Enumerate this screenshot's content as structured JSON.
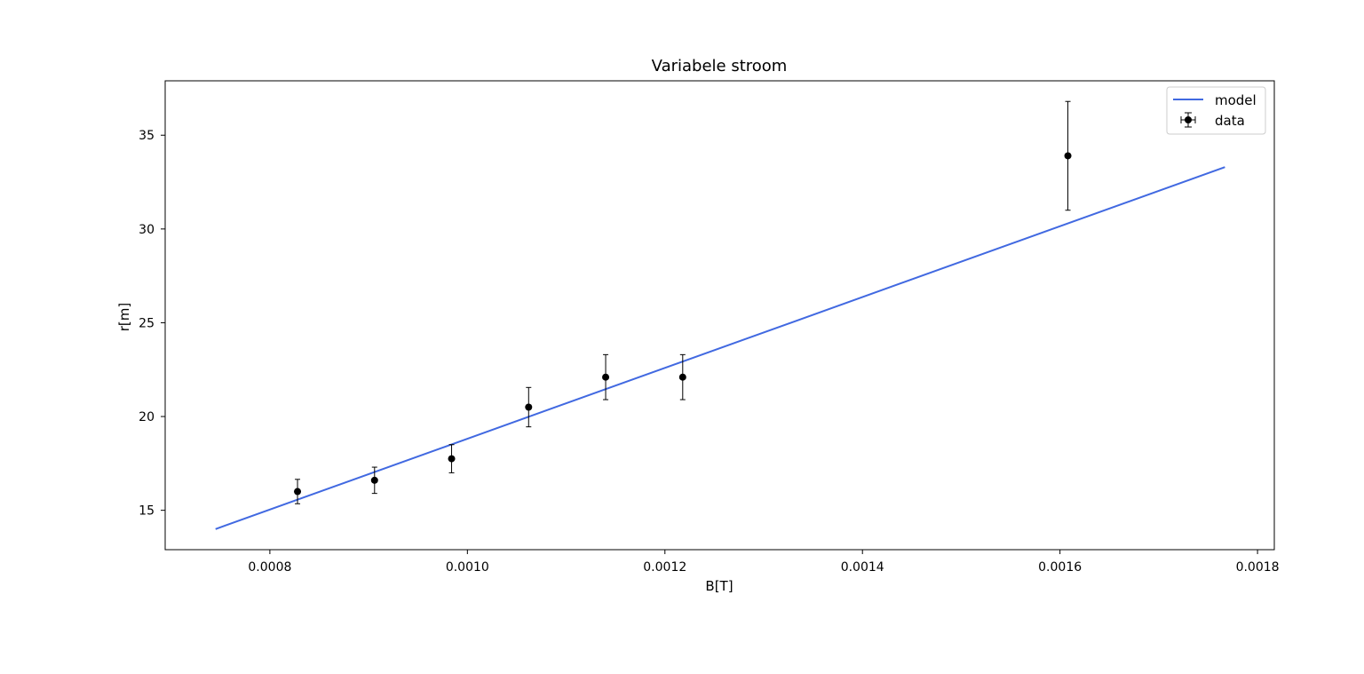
{
  "chart_data": {
    "type": "scatter",
    "title": "Variabele stroom",
    "xlabel": "B[T]",
    "ylabel": "r[m]",
    "xlim": [
      0.000694,
      0.001817
    ],
    "ylim": [
      12.9,
      37.9
    ],
    "xticks": [
      0.0008,
      0.001,
      0.0012,
      0.0014,
      0.0016,
      0.0018
    ],
    "xtick_labels": [
      "0.0008",
      "0.0010",
      "0.0012",
      "0.0014",
      "0.0016",
      "0.0018"
    ],
    "yticks": [
      15,
      20,
      25,
      30,
      35
    ],
    "ytick_labels": [
      "15",
      "20",
      "25",
      "30",
      "35"
    ],
    "grid": false,
    "legend_position": "top-right",
    "series": [
      {
        "name": "model",
        "kind": "line",
        "color": "#4169e1",
        "x": [
          0.000745,
          0.001767
        ],
        "y": [
          14.0,
          33.3
        ]
      },
      {
        "name": "data",
        "kind": "errorbar",
        "color": "#000000",
        "x": [
          0.000828,
          0.000906,
          0.000984,
          0.001062,
          0.00114,
          0.001218,
          0.001608
        ],
        "y": [
          16.0,
          16.6,
          17.75,
          20.5,
          22.1,
          22.1,
          33.9
        ],
        "yerr": [
          0.65,
          0.7,
          0.75,
          1.05,
          1.2,
          1.2,
          2.9
        ]
      }
    ]
  }
}
